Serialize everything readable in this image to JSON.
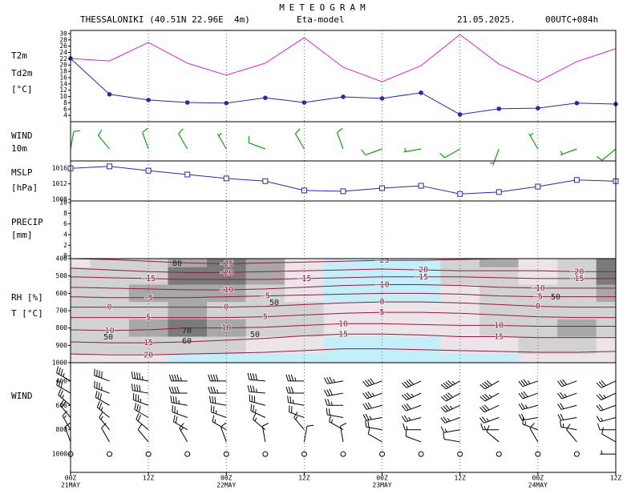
{
  "header": {
    "title": "METEOGRAM",
    "location": "THESSALONIKI (40.51N 22.96E  4m)",
    "model": "Eta-model",
    "date": "21.05.2025.",
    "run": "00UTC+084h"
  },
  "time_axis": {
    "x": [
      0,
      6,
      12,
      18,
      24,
      30,
      36,
      42,
      48,
      54,
      60,
      66,
      72,
      78,
      84
    ],
    "xlim": [
      0,
      84
    ],
    "xticks": [
      {
        "value": 0,
        "label": "00Z"
      },
      {
        "value": 12,
        "label": "12Z"
      },
      {
        "value": 24,
        "label": "00Z"
      },
      {
        "value": 36,
        "label": "12Z"
      },
      {
        "value": 48,
        "label": "00Z"
      },
      {
        "value": 60,
        "label": "12Z"
      },
      {
        "value": 72,
        "label": "00Z"
      },
      {
        "value": 84,
        "label": "12Z"
      }
    ],
    "date_labels": [
      {
        "value": 0,
        "label": "21MAY"
      },
      {
        "value": 24,
        "label": "22MAY"
      },
      {
        "value": 48,
        "label": "23MAY"
      },
      {
        "value": 72,
        "label": "24MAY"
      }
    ],
    "grid": true
  },
  "chart_data": [
    {
      "type": "line",
      "ylabel": "[°C]",
      "ylim": [
        2,
        31
      ],
      "yticks": [
        4,
        6,
        8,
        10,
        12,
        14,
        16,
        18,
        20,
        22,
        24,
        26,
        28,
        30
      ],
      "series": [
        {
          "name": "T2m",
          "color": "#e020d0",
          "marker": "none",
          "values": [
            22.1,
            21.3,
            27.2,
            20.6,
            16.8,
            20.6,
            28.7,
            19.3,
            14.7,
            19.8,
            29.7,
            20.3,
            14.7,
            21.1,
            25.2
          ]
        },
        {
          "name": "Td2m",
          "color": "#2828a8",
          "marker": "circle",
          "values": [
            22.1,
            10.7,
            8.9,
            8.1,
            7.9,
            9.6,
            8.1,
            9.9,
            9.4,
            11.2,
            4.3,
            6.1,
            6.3,
            7.9,
            7.6
          ]
        }
      ]
    },
    {
      "type": "barb",
      "label_lines": [
        "WIND",
        "10m"
      ],
      "color": "#10a010",
      "direction": [
        10,
        320,
        340,
        330,
        330,
        290,
        330,
        340,
        250,
        260,
        240,
        200,
        330,
        250,
        230
      ],
      "speed": [
        10,
        10,
        10,
        10,
        5,
        10,
        10,
        10,
        10,
        5,
        10,
        5,
        5,
        5,
        10
      ]
    },
    {
      "type": "line",
      "label_lines": [
        "MSLP",
        "[hPa]"
      ],
      "ylim": [
        1007.6,
        1017.9
      ],
      "yticks": [
        1008,
        1012,
        1016
      ],
      "series": [
        {
          "color": "#2828a8",
          "marker": "square",
          "values": [
            1016.0,
            1016.5,
            1015.4,
            1014.4,
            1013.4,
            1012.7,
            1010.3,
            1010.1,
            1010.9,
            1011.5,
            1009.4,
            1009.9,
            1011.3,
            1013.0,
            1012.7
          ]
        }
      ]
    },
    {
      "type": "bar",
      "label_lines": [
        "PRECIP",
        "[mm]"
      ],
      "color": "#2828a8",
      "ylim": [
        -0.5,
        10.3
      ],
      "yticks": [
        0,
        2,
        4,
        6,
        8,
        10
      ],
      "values": [
        0,
        0,
        0,
        0,
        0,
        0,
        0,
        0,
        0,
        0,
        0,
        0,
        0,
        0,
        0
      ]
    },
    {
      "type": "cross_section",
      "label_lines": [
        "RH [%]",
        "T [°C]"
      ],
      "ylim": [
        400,
        1000
      ],
      "y_reversed": true,
      "yticks": [
        400,
        500,
        600,
        700,
        800,
        900,
        1000
      ],
      "levels": [
        400,
        500,
        600,
        700,
        800,
        900,
        1000
      ],
      "rh": [
        [
          40,
          50,
          60,
          75,
          85,
          70,
          40,
          20,
          20,
          20,
          60,
          75,
          40,
          55,
          80
        ],
        [
          55,
          60,
          65,
          80,
          90,
          70,
          40,
          20,
          20,
          20,
          55,
          65,
          40,
          60,
          85
        ],
        [
          60,
          65,
          70,
          75,
          70,
          60,
          40,
          20,
          15,
          15,
          30,
          50,
          55,
          65,
          70
        ],
        [
          55,
          60,
          65,
          70,
          65,
          60,
          55,
          45,
          40,
          35,
          45,
          55,
          60,
          65,
          65
        ],
        [
          60,
          65,
          70,
          80,
          75,
          65,
          50,
          40,
          30,
          30,
          40,
          60,
          65,
          70,
          60
        ],
        [
          50,
          55,
          65,
          60,
          50,
          40,
          30,
          25,
          25,
          25,
          30,
          45,
          50,
          55,
          45
        ],
        [
          30,
          30,
          30,
          25,
          25,
          20,
          20,
          20,
          20,
          20,
          20,
          25,
          30,
          30,
          30
        ]
      ],
      "rh_labels": [
        80,
        50,
        70,
        60,
        50,
        50,
        50
      ],
      "isotherm_color": "#8c1c44",
      "isotherms": [
        {
          "level": -25,
          "pressure": [
            400,
            405,
            415,
            425,
            430,
            425,
            420,
            415,
            410,
            410,
            405,
            400,
            400,
            400,
            400
          ]
        },
        {
          "level": -20,
          "pressure": [
            455,
            465,
            475,
            480,
            480,
            475,
            470,
            465,
            460,
            465,
            470,
            470,
            470,
            475,
            475
          ]
        },
        {
          "level": -15,
          "pressure": [
            505,
            510,
            515,
            520,
            520,
            520,
            515,
            510,
            505,
            505,
            505,
            510,
            515,
            515,
            515
          ]
        },
        {
          "level": -10,
          "pressure": [
            565,
            570,
            575,
            580,
            580,
            575,
            565,
            555,
            550,
            550,
            555,
            565,
            570,
            570,
            570
          ]
        },
        {
          "level": -5,
          "pressure": [
            620,
            625,
            625,
            625,
            620,
            615,
            610,
            605,
            600,
            600,
            605,
            615,
            620,
            620,
            620
          ]
        },
        {
          "level": 0,
          "pressure": [
            680,
            680,
            680,
            680,
            680,
            675,
            665,
            655,
            650,
            650,
            655,
            665,
            675,
            680,
            680
          ]
        },
        {
          "level": 5,
          "pressure": [
            740,
            740,
            740,
            740,
            740,
            735,
            725,
            715,
            710,
            710,
            715,
            725,
            735,
            740,
            740
          ]
        },
        {
          "level": 10,
          "pressure": [
            810,
            815,
            810,
            800,
            800,
            795,
            785,
            775,
            775,
            780,
            785,
            785,
            790,
            790,
            790
          ]
        },
        {
          "level": 15,
          "pressure": [
            880,
            885,
            885,
            880,
            870,
            860,
            845,
            835,
            835,
            840,
            850,
            850,
            855,
            855,
            855
          ]
        },
        {
          "level": 20,
          "pressure": [
            950,
            955,
            955,
            950,
            945,
            940,
            930,
            920,
            920,
            925,
            930,
            935,
            940,
            940,
            935
          ]
        }
      ]
    },
    {
      "type": "barb_profile",
      "label_lines": [
        "WIND"
      ],
      "ylim": [
        250,
        1150
      ],
      "y_reversed": true,
      "yticks": [
        400,
        600,
        800,
        1000
      ],
      "levels": [
        400,
        500,
        600,
        700,
        800,
        900,
        1000
      ],
      "direction": [
        [
          300,
          290,
          280,
          270,
          270,
          275,
          270,
          260,
          250,
          245,
          240,
          240,
          250,
          250,
          245
        ],
        [
          300,
          290,
          280,
          270,
          270,
          275,
          270,
          260,
          250,
          245,
          240,
          240,
          250,
          250,
          245
        ],
        [
          310,
          300,
          290,
          280,
          280,
          285,
          280,
          270,
          255,
          250,
          245,
          245,
          255,
          255,
          250
        ],
        [
          320,
          310,
          300,
          290,
          290,
          295,
          290,
          280,
          260,
          255,
          250,
          250,
          260,
          260,
          255
        ],
        [
          330,
          320,
          310,
          300,
          300,
          310,
          320,
          300,
          280,
          270,
          260,
          270,
          290,
          280,
          270
        ],
        [
          340,
          330,
          320,
          330,
          340,
          350,
          10,
          350,
          300,
          290,
          280,
          310,
          330,
          320,
          300
        ],
        [
          0,
          0,
          0,
          0,
          0,
          0,
          0,
          0,
          0,
          0,
          0,
          0,
          0,
          0,
          270
        ]
      ],
      "speed": [
        [
          35,
          40,
          45,
          45,
          40,
          40,
          35,
          35,
          40,
          40,
          45,
          40,
          35,
          30,
          30
        ],
        [
          30,
          35,
          40,
          40,
          35,
          35,
          30,
          30,
          35,
          35,
          40,
          35,
          30,
          25,
          25
        ],
        [
          25,
          30,
          35,
          35,
          30,
          30,
          25,
          25,
          30,
          30,
          35,
          30,
          25,
          20,
          20
        ],
        [
          20,
          25,
          30,
          25,
          25,
          25,
          20,
          20,
          25,
          25,
          25,
          25,
          20,
          20,
          15
        ],
        [
          15,
          15,
          20,
          20,
          15,
          15,
          15,
          15,
          20,
          15,
          15,
          15,
          15,
          15,
          10
        ],
        [
          10,
          10,
          10,
          15,
          10,
          10,
          10,
          10,
          10,
          10,
          10,
          10,
          10,
          10,
          10
        ],
        [
          0,
          0,
          0,
          0,
          0,
          0,
          0,
          0,
          0,
          0,
          0,
          0,
          0,
          0,
          5
        ]
      ]
    }
  ]
}
